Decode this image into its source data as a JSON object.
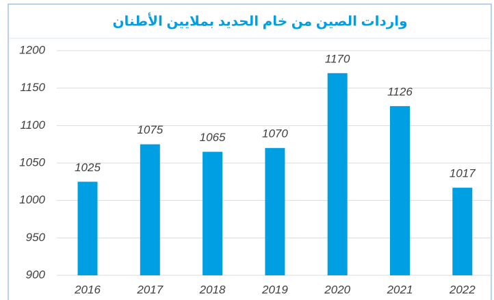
{
  "chart_data": {
    "type": "bar",
    "title": "واردات الصين من خام الحديد بملايين الأطنان",
    "categories": [
      "2016",
      "2017",
      "2018",
      "2019",
      "2020",
      "2021",
      "2022"
    ],
    "values": [
      1025,
      1075,
      1065,
      1070,
      1170,
      1126,
      1017
    ],
    "color": "#009fe3",
    "ylim": [
      900,
      1200
    ],
    "yticks": [
      900,
      950,
      1000,
      1050,
      1100,
      1150,
      1200
    ],
    "grid": true
  }
}
